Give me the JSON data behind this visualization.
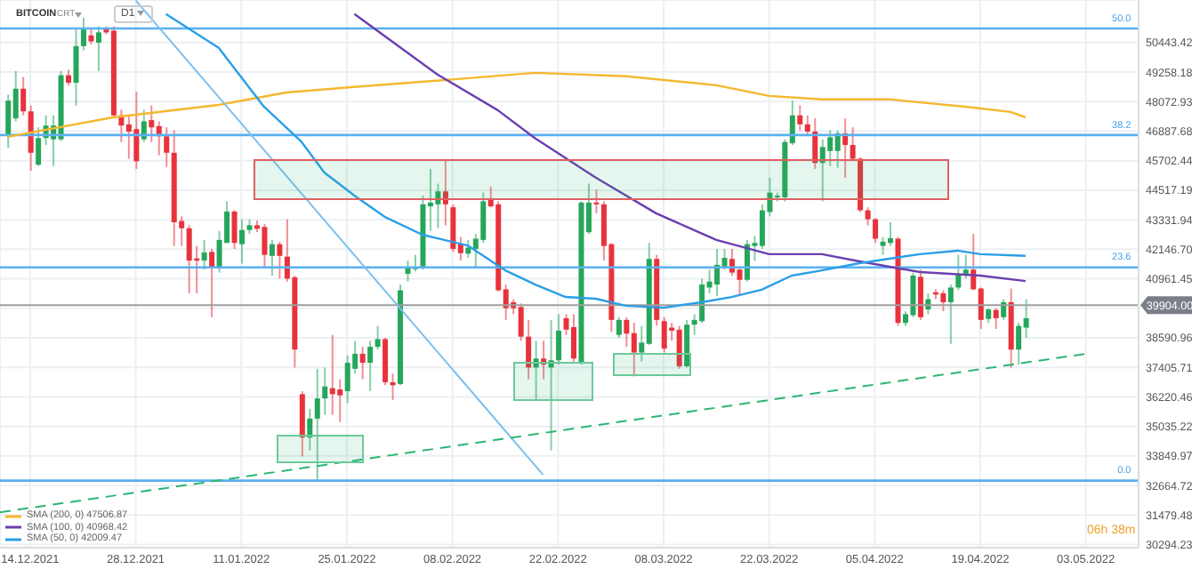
{
  "chart_data": {
    "type": "candlestick",
    "title": "BITCOIN",
    "annotations": [
      "CRT",
      "D1",
      "06h 38m",
      {
        "text": "50.0",
        "x": "2022-05-09",
        "y": 51010
      },
      {
        "text": "38.2",
        "x": "2022-05-09",
        "y": 46730
      },
      {
        "text": "23.6",
        "x": "2022-05-09",
        "y": 41420
      },
      {
        "text": "0.0",
        "x": "2022-05-09",
        "y": 32860
      }
    ],
    "x": [
      "2021-12-11",
      "2021-12-12",
      "2021-12-13",
      "2021-12-14",
      "2021-12-15",
      "2021-12-16",
      "2021-12-17",
      "2021-12-18",
      "2021-12-19",
      "2021-12-20",
      "2021-12-21",
      "2021-12-22",
      "2021-12-23",
      "2021-12-24",
      "2021-12-25",
      "2021-12-26",
      "2021-12-27",
      "2021-12-28",
      "2021-12-29",
      "2021-12-30",
      "2021-12-31",
      "2022-01-01",
      "2022-01-02",
      "2022-01-03",
      "2022-01-04",
      "2022-01-05",
      "2022-01-06",
      "2022-01-07",
      "2022-01-08",
      "2022-01-09",
      "2022-01-10",
      "2022-01-11",
      "2022-01-12",
      "2022-01-13",
      "2022-01-14",
      "2022-01-15",
      "2022-01-16",
      "2022-01-17",
      "2022-01-18",
      "2022-01-19",
      "2022-01-20",
      "2022-01-21",
      "2022-01-22",
      "2022-01-23",
      "2022-01-24",
      "2022-01-25",
      "2022-01-26",
      "2022-01-27",
      "2022-01-28",
      "2022-01-29",
      "2022-01-30",
      "2022-01-31",
      "2022-02-01",
      "2022-02-02",
      "2022-02-03",
      "2022-02-04",
      "2022-02-05",
      "2022-02-06",
      "2022-02-07",
      "2022-02-08",
      "2022-02-09",
      "2022-02-10",
      "2022-02-11",
      "2022-02-12",
      "2022-02-13",
      "2022-02-14",
      "2022-02-15",
      "2022-02-16",
      "2022-02-17",
      "2022-02-18",
      "2022-02-19",
      "2022-02-20",
      "2022-02-21",
      "2022-02-22",
      "2022-02-23",
      "2022-02-24",
      "2022-02-25",
      "2022-02-26",
      "2022-02-27",
      "2022-02-28",
      "2022-03-01",
      "2022-03-02",
      "2022-03-03",
      "2022-03-04",
      "2022-03-05",
      "2022-03-06",
      "2022-03-07",
      "2022-03-08",
      "2022-03-09",
      "2022-03-10",
      "2022-03-11",
      "2022-03-12",
      "2022-03-13",
      "2022-03-14",
      "2022-03-15",
      "2022-03-16",
      "2022-03-17",
      "2022-03-18",
      "2022-03-19",
      "2022-03-20",
      "2022-03-21",
      "2022-03-22",
      "2022-03-23",
      "2022-03-24",
      "2022-03-25",
      "2022-03-26",
      "2022-03-27",
      "2022-03-28",
      "2022-03-29",
      "2022-03-30",
      "2022-03-31",
      "2022-04-01",
      "2022-04-02",
      "2022-04-03",
      "2022-04-04",
      "2022-04-05",
      "2022-04-06",
      "2022-04-07",
      "2022-04-08",
      "2022-04-09",
      "2022-04-10",
      "2022-04-11",
      "2022-04-12",
      "2022-04-13",
      "2022-04-14",
      "2022-04-15",
      "2022-04-16",
      "2022-04-17",
      "2022-04-18",
      "2022-04-19",
      "2022-04-20",
      "2022-04-21",
      "2022-04-22",
      "2022-04-23",
      "2022-04-24",
      "2022-04-25"
    ],
    "ohlc": [
      [
        46730,
        48350,
        46210,
        48110
      ],
      [
        47400,
        49300,
        47280,
        48590
      ],
      [
        48590,
        49060,
        47520,
        47680
      ],
      [
        47680,
        47920,
        45300,
        46020
      ],
      [
        45540,
        47040,
        45490,
        46610
      ],
      [
        46610,
        47520,
        46330,
        47110
      ],
      [
        46560,
        47520,
        45490,
        47110
      ],
      [
        46560,
        49300,
        46490,
        49130
      ],
      [
        49130,
        49350,
        48710,
        48830
      ],
      [
        48830,
        50970,
        47920,
        50300
      ],
      [
        50300,
        51440,
        50130,
        51010
      ],
      [
        50730,
        51010,
        50370,
        50490
      ],
      [
        50440,
        51090,
        49300,
        50850
      ],
      [
        50970,
        51090,
        50780,
        50850
      ],
      [
        50920,
        51090,
        47400,
        47520
      ],
      [
        47520,
        47750,
        46450,
        47110
      ],
      [
        47160,
        47520,
        45780,
        46870
      ],
      [
        46970,
        48470,
        45370,
        45680
      ],
      [
        46560,
        47750,
        46450,
        47280
      ],
      [
        47330,
        47920,
        46450,
        47040
      ],
      [
        47090,
        47280,
        45920,
        46680
      ],
      [
        46680,
        47040,
        45450,
        46020
      ],
      [
        46020,
        46920,
        42280,
        43230
      ],
      [
        43280,
        43470,
        42280,
        42990
      ],
      [
        42990,
        43110,
        40380,
        41690
      ],
      [
        41780,
        42280,
        40380,
        41690
      ],
      [
        41690,
        42520,
        41330,
        42020
      ],
      [
        42040,
        42160,
        39420,
        41400
      ],
      [
        41400,
        42880,
        41210,
        42520
      ],
      [
        42400,
        44070,
        42400,
        43660
      ],
      [
        43660,
        43710,
        42160,
        42400
      ],
      [
        42350,
        43350,
        41570,
        42920
      ],
      [
        42920,
        43350,
        42760,
        43110
      ],
      [
        43110,
        43300,
        42830,
        42970
      ],
      [
        43040,
        43160,
        41400,
        41920
      ],
      [
        41880,
        42520,
        41090,
        42350
      ],
      [
        42350,
        42450,
        40970,
        41880
      ],
      [
        41850,
        43350,
        40850,
        40970
      ],
      [
        41020,
        41090,
        37400,
        38120
      ],
      [
        36330,
        36450,
        33830,
        34590
      ],
      [
        34590,
        35740,
        34070,
        35350
      ],
      [
        35350,
        37350,
        32880,
        36160
      ],
      [
        36160,
        37400,
        35500,
        36640
      ],
      [
        36570,
        38710,
        35500,
        36330
      ],
      [
        36520,
        36930,
        35210,
        36280
      ],
      [
        36450,
        37880,
        35970,
        37590
      ],
      [
        37350,
        38470,
        37160,
        37950
      ],
      [
        37950,
        38230,
        36930,
        37590
      ],
      [
        37590,
        38470,
        36450,
        38230
      ],
      [
        38230,
        39070,
        38120,
        38540
      ],
      [
        38540,
        38590,
        36690,
        36810
      ],
      [
        36810,
        37160,
        36090,
        36690
      ],
      [
        36740,
        40730,
        36690,
        40500
      ],
      [
        41160,
        41690,
        40850,
        41400
      ],
      [
        41400,
        41920,
        41260,
        41420
      ],
      [
        41450,
        44300,
        41330,
        43950
      ],
      [
        43870,
        45370,
        42880,
        44020
      ],
      [
        43950,
        44780,
        42990,
        44470
      ],
      [
        44470,
        45730,
        43110,
        43950
      ],
      [
        43830,
        43950,
        42040,
        42160
      ],
      [
        42350,
        42640,
        41690,
        41990
      ],
      [
        41970,
        42520,
        41800,
        42210
      ],
      [
        42160,
        42760,
        41450,
        42570
      ],
      [
        42520,
        44420,
        42400,
        44070
      ],
      [
        44180,
        44660,
        43830,
        43870
      ],
      [
        43950,
        44070,
        40450,
        40500
      ],
      [
        40540,
        40730,
        39310,
        39780
      ],
      [
        40020,
        40140,
        39540,
        39780
      ],
      [
        39830,
        39970,
        38470,
        38640
      ],
      [
        38640,
        39310,
        36930,
        37400
      ],
      [
        37400,
        38470,
        36090,
        37760
      ],
      [
        37760,
        38470,
        36930,
        37520
      ],
      [
        37400,
        39310,
        34070,
        37690
      ],
      [
        37690,
        39540,
        37520,
        38880
      ],
      [
        39380,
        39540,
        38710,
        38920
      ],
      [
        39020,
        39540,
        37640,
        37760
      ],
      [
        37590,
        44070,
        37520,
        44020
      ],
      [
        42830,
        44780,
        42760,
        44020
      ],
      [
        44020,
        44540,
        43590,
        43950
      ],
      [
        43950,
        44070,
        41690,
        42280
      ],
      [
        42350,
        42400,
        38830,
        39310
      ],
      [
        38710,
        39420,
        38590,
        39310
      ],
      [
        39310,
        39420,
        38230,
        38760
      ],
      [
        38780,
        39190,
        37040,
        38000
      ],
      [
        38000,
        39070,
        37640,
        38400
      ],
      [
        38350,
        42400,
        38310,
        41760
      ],
      [
        41760,
        41920,
        39070,
        39310
      ],
      [
        39260,
        39420,
        38000,
        38160
      ],
      [
        39000,
        39190,
        38470,
        38880
      ],
      [
        38920,
        39070,
        37350,
        37450
      ],
      [
        37450,
        39310,
        37400,
        39120
      ],
      [
        39120,
        39540,
        38710,
        39310
      ],
      [
        39260,
        40970,
        39190,
        40730
      ],
      [
        40610,
        41330,
        40380,
        40850
      ],
      [
        40730,
        42160,
        40260,
        41520
      ],
      [
        41450,
        42160,
        41330,
        41800
      ],
      [
        41760,
        42160,
        41090,
        41210
      ],
      [
        41330,
        41450,
        40310,
        40920
      ],
      [
        40920,
        42520,
        40850,
        42350
      ],
      [
        42280,
        42690,
        41690,
        42400
      ],
      [
        42280,
        43950,
        42160,
        43710
      ],
      [
        43640,
        45020,
        43470,
        44420
      ],
      [
        44230,
        44420,
        44070,
        44300
      ],
      [
        44230,
        46560,
        44070,
        46450
      ],
      [
        46400,
        48110,
        46330,
        47520
      ],
      [
        47520,
        47920,
        46920,
        47160
      ],
      [
        47160,
        47520,
        46680,
        46870
      ],
      [
        46870,
        47400,
        45370,
        45610
      ],
      [
        45610,
        46560,
        44070,
        46250
      ],
      [
        46090,
        46920,
        45490,
        46640
      ],
      [
        46090,
        46920,
        45420,
        46800
      ],
      [
        46800,
        47400,
        45020,
        46330
      ],
      [
        46330,
        47040,
        45680,
        45780
      ],
      [
        45780,
        45850,
        43640,
        43710
      ],
      [
        43710,
        43830,
        43110,
        43350
      ],
      [
        43350,
        43400,
        42400,
        42570
      ],
      [
        42280,
        42640,
        41920,
        42450
      ],
      [
        42400,
        43230,
        42280,
        42590
      ],
      [
        42570,
        42640,
        39070,
        39190
      ],
      [
        39190,
        39660,
        39070,
        39540
      ],
      [
        39500,
        41210,
        39420,
        41090
      ],
      [
        41040,
        41330,
        39310,
        39420
      ],
      [
        39730,
        40380,
        39540,
        40140
      ],
      [
        40420,
        40540,
        40140,
        40330
      ],
      [
        40380,
        40500,
        39660,
        40020
      ],
      [
        40020,
        40730,
        38350,
        40610
      ],
      [
        40610,
        41920,
        40500,
        41140
      ],
      [
        41090,
        41920,
        40970,
        41330
      ],
      [
        41330,
        42760,
        40500,
        40540
      ],
      [
        40570,
        40610,
        38950,
        39310
      ],
      [
        39350,
        39780,
        39190,
        39730
      ],
      [
        39710,
        39780,
        38950,
        39380
      ],
      [
        39420,
        40140,
        39310,
        40020
      ],
      [
        40020,
        40570,
        37400,
        38120
      ],
      [
        38120,
        39190,
        37520,
        39070
      ],
      [
        39000,
        40140,
        38590,
        39380
      ]
    ],
    "series": [
      {
        "type": "line",
        "name": "SMA (200, 0) 47506.87",
        "color": "#f5b72e",
        "x": [
          "2021-12-11",
          "2021-12-25",
          "2022-01-08",
          "2022-01-17",
          "2022-01-26",
          "2022-02-07",
          "2022-02-19",
          "2022-03-03",
          "2022-03-15",
          "2022-03-22",
          "2022-03-29",
          "2022-04-07",
          "2022-04-17",
          "2022-04-23",
          "2022-04-25"
        ],
        "values": [
          46660,
          47440,
          47940,
          48440,
          48660,
          48940,
          49230,
          49090,
          48730,
          48300,
          48160,
          48160,
          47870,
          47660,
          47440
        ]
      },
      {
        "type": "line",
        "name": "SMA (100, 0) 40968.42",
        "color": "#6a3fb0",
        "x": [
          "2022-01-26",
          "2022-02-06",
          "2022-02-14",
          "2022-02-19",
          "2022-02-27",
          "2022-03-07",
          "2022-03-15",
          "2022-03-22",
          "2022-03-29",
          "2022-04-03",
          "2022-04-11",
          "2022-04-19",
          "2022-04-25"
        ],
        "values": [
          51590,
          49160,
          47730,
          46590,
          45020,
          43590,
          42520,
          41950,
          41950,
          41660,
          41230,
          41090,
          40870
        ]
      },
      {
        "type": "line",
        "name": "SMA (50, 0) 42009.47",
        "color": "#2a9fe6",
        "x": [
          "2022-01-01",
          "2022-01-08",
          "2022-01-14",
          "2022-01-19",
          "2022-01-22",
          "2022-01-26",
          "2022-01-30",
          "2022-02-04",
          "2022-02-10",
          "2022-02-15",
          "2022-02-19",
          "2022-02-23",
          "2022-02-27",
          "2022-03-03",
          "2022-03-08",
          "2022-03-13",
          "2022-03-17",
          "2022-03-21",
          "2022-03-25",
          "2022-03-29",
          "2022-04-03",
          "2022-04-11",
          "2022-04-16",
          "2022-04-19",
          "2022-04-25"
        ],
        "values": [
          51590,
          50230,
          47870,
          46450,
          45230,
          44300,
          43450,
          42730,
          42300,
          41300,
          40730,
          40230,
          40160,
          39880,
          39800,
          40020,
          40230,
          40520,
          41090,
          41300,
          41590,
          41950,
          42090,
          41950,
          41880
        ]
      },
      {
        "type": "line",
        "color": "#7cc0f0",
        "x": [
          "2021-12-28",
          "2022-02-20"
        ],
        "values": [
          52130,
          33100
        ]
      },
      {
        "type": "line",
        "color": "#2bb673",
        "line_style": "dashed",
        "x": [
          "2021-12-10",
          "2022-05-03"
        ],
        "values": [
          31590,
          37950
        ]
      }
    ],
    "ref_lines": [
      {
        "axis": "y",
        "value": 51010,
        "color": "#5ab0f0"
      },
      {
        "axis": "y",
        "value": 46730,
        "color": "#5ab0f0"
      },
      {
        "axis": "y",
        "value": 41420,
        "color": "#5ab0f0"
      },
      {
        "axis": "y",
        "value": 32860,
        "color": "#5ab0f0"
      },
      {
        "axis": "y",
        "value": 39904,
        "label": "39904.00",
        "color": "#9e9e9e"
      }
    ],
    "xlim": [
      "2021-12-10",
      "2022-05-10"
    ],
    "xticks": [
      {
        "value": "2021-12-14",
        "label": "14.12.2021"
      },
      {
        "value": "2021-12-28",
        "label": "28.12.2021"
      },
      {
        "value": "2022-01-11",
        "label": "11.01.2022"
      },
      {
        "value": "2022-01-25",
        "label": "25.01.2022"
      },
      {
        "value": "2022-02-08",
        "label": "08.02.2022"
      },
      {
        "value": "2022-02-22",
        "label": "22.02.2022"
      },
      {
        "value": "2022-03-08",
        "label": "08.03.2022"
      },
      {
        "value": "2022-03-22",
        "label": "22.03.2022"
      },
      {
        "value": "2022-04-05",
        "label": "05.04.2022"
      },
      {
        "value": "2022-04-19",
        "label": "19.04.2022"
      },
      {
        "value": "2022-05-03",
        "label": "03.05.2022"
      }
    ],
    "ylim": [
      30170,
      52150
    ],
    "yticks": [
      50443.42,
      49258.18,
      48072.93,
      46887.68,
      45702.44,
      44517.19,
      43331.94,
      {
        "value": 42146.7,
        "label": "42146.70"
      },
      40961.45,
      {
        "value": 39776.2,
        "label": null
      },
      38590.96,
      37405.71,
      36220.46,
      35035.22,
      33849.97,
      32664.72,
      31479.48,
      30294.23
    ],
    "grid": true,
    "legend": "bottom left"
  }
}
